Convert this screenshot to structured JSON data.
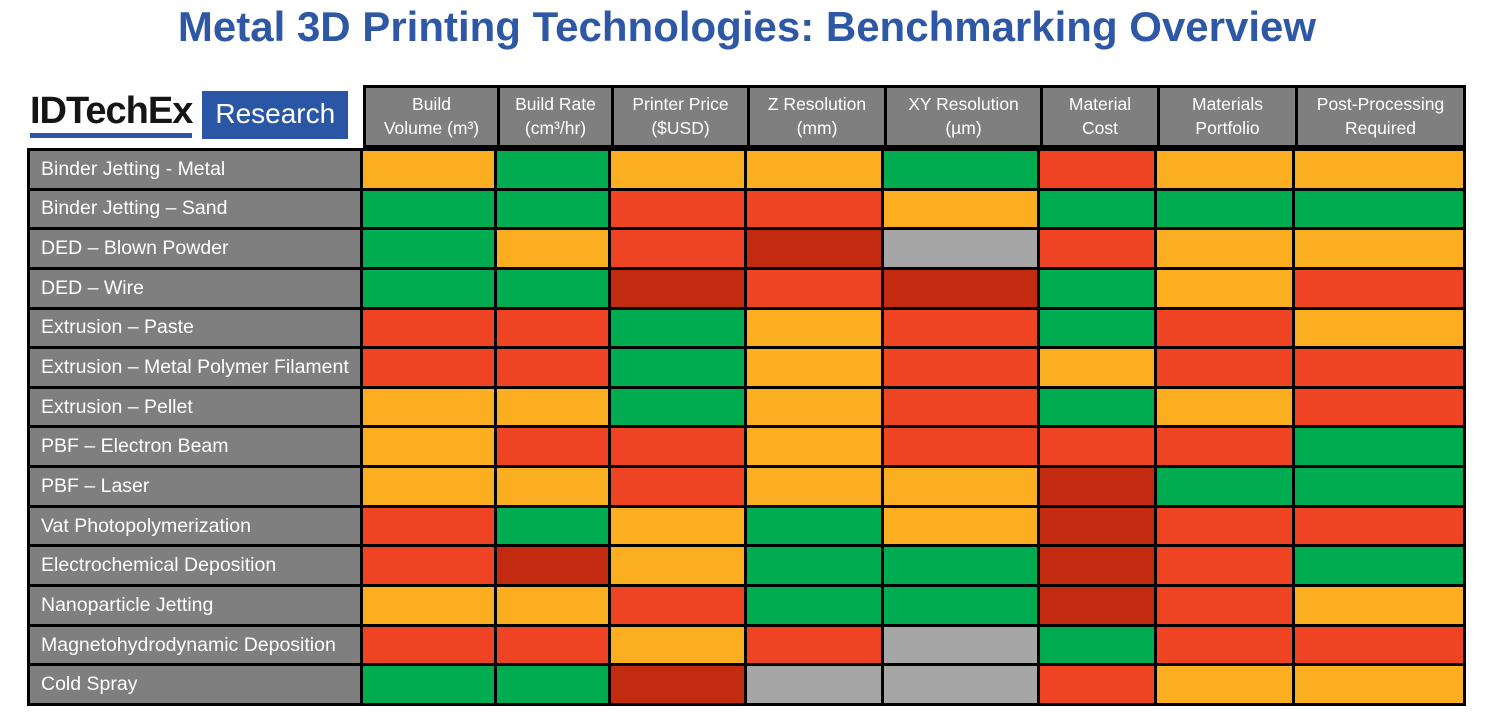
{
  "title": "Metal 3D Printing Technologies: Benchmarking Overview",
  "logo": {
    "brand": "IDTechEx",
    "product": "Research"
  },
  "colors": {
    "title_blue": "#2E58A6",
    "logo_blue": "#2A57A5",
    "header_gray": "#7F7F7F",
    "cell_orange": "#FBAE20",
    "cell_green": "#00AC4F",
    "cell_red": "#EF4424",
    "cell_dark_red": "#C32B10",
    "cell_gray": "#A6A6A6"
  },
  "table": {
    "column_labels": [
      "Build\nVolume (m³)",
      "Build Rate\n(cm³/hr)",
      "Printer Price\n($USD)",
      "Z Resolution\n(mm)",
      "XY Resolution\n(µm)",
      "Material\nCost",
      "Materials\nPortfolio",
      "Post-Processing\nRequired"
    ]
  },
  "chart_data": {
    "type": "heatmap",
    "title": "Metal 3D Printing Technologies: Benchmarking Overview",
    "columns": [
      "Build Volume (m³)",
      "Build Rate (cm³/hr)",
      "Printer Price ($USD)",
      "Z Resolution (mm)",
      "XY Resolution (µm)",
      "Material Cost",
      "Materials Portfolio",
      "Post-Processing Required"
    ],
    "rows": [
      "Binder Jetting - Metal",
      "Binder Jetting – Sand",
      "DED – Blown Powder",
      "DED – Wire",
      "Extrusion – Paste",
      "Extrusion – Metal Polymer Filament",
      "Extrusion – Pellet",
      "PBF – Electron Beam",
      "PBF – Laser",
      "Vat Photopolymerization",
      "Electrochemical Deposition",
      "Nanoparticle Jetting",
      "Magnetohydrodynamic Deposition",
      "Cold Spray"
    ],
    "rating_colors": {
      "G": "#00AC4F",
      "O": "#FBAE20",
      "R": "#EF4424",
      "D": "#C32B10",
      "N": "#A6A6A6"
    },
    "cells": [
      [
        "O",
        "G",
        "O",
        "O",
        "G",
        "R",
        "O",
        "O"
      ],
      [
        "G",
        "G",
        "R",
        "R",
        "O",
        "G",
        "G",
        "G"
      ],
      [
        "G",
        "O",
        "R",
        "D",
        "N",
        "R",
        "O",
        "O"
      ],
      [
        "G",
        "G",
        "D",
        "R",
        "D",
        "G",
        "O",
        "R"
      ],
      [
        "R",
        "R",
        "G",
        "O",
        "R",
        "G",
        "R",
        "O"
      ],
      [
        "R",
        "R",
        "G",
        "O",
        "R",
        "O",
        "R",
        "R"
      ],
      [
        "O",
        "O",
        "G",
        "O",
        "R",
        "G",
        "O",
        "R"
      ],
      [
        "O",
        "R",
        "R",
        "O",
        "R",
        "R",
        "R",
        "G"
      ],
      [
        "O",
        "O",
        "R",
        "O",
        "O",
        "D",
        "G",
        "G"
      ],
      [
        "R",
        "G",
        "O",
        "G",
        "O",
        "D",
        "R",
        "R"
      ],
      [
        "R",
        "D",
        "O",
        "G",
        "G",
        "D",
        "R",
        "G"
      ],
      [
        "O",
        "O",
        "R",
        "G",
        "G",
        "D",
        "R",
        "O"
      ],
      [
        "R",
        "R",
        "O",
        "R",
        "N",
        "G",
        "R",
        "R"
      ],
      [
        "G",
        "G",
        "D",
        "N",
        "N",
        "R",
        "O",
        "O"
      ]
    ]
  }
}
